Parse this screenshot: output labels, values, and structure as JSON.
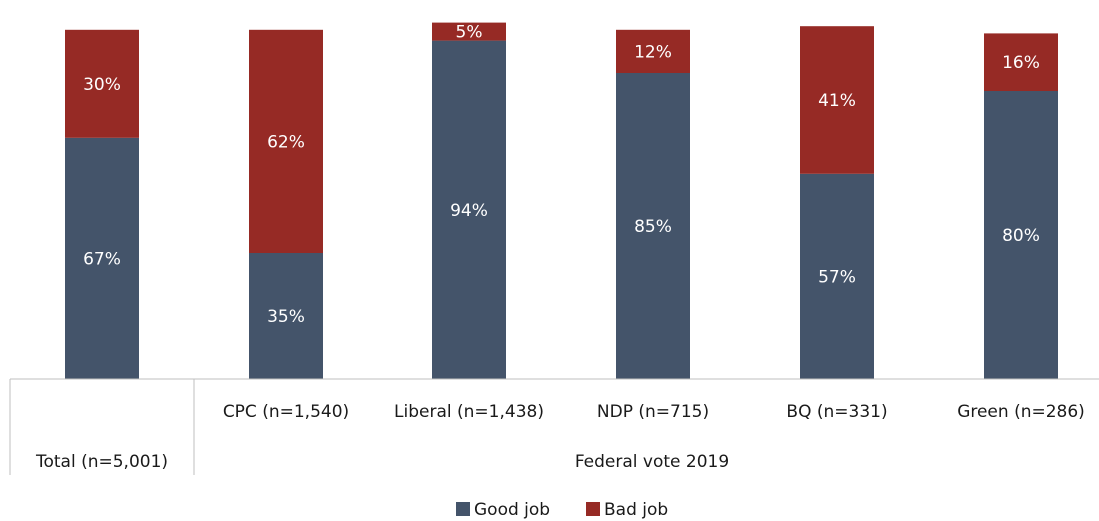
{
  "chart_data": {
    "type": "bar",
    "stacked": true,
    "categories": [
      "Total (n=5,001)",
      "CPC (n=1,540)",
      "Liberal (n=1,438)",
      "NDP (n=715)",
      "BQ (n=331)",
      "Green (n=286)"
    ],
    "group_label": "Federal vote 2019",
    "series": [
      {
        "name": "Good job",
        "color": "#44546a",
        "values": [
          67,
          35,
          94,
          85,
          57,
          80
        ]
      },
      {
        "name": "Bad job",
        "color": "#962a25",
        "values": [
          30,
          62,
          5,
          12,
          41,
          16
        ]
      }
    ],
    "data_labels": [
      [
        "67%",
        "35%",
        "94%",
        "85%",
        "57%",
        "80%"
      ],
      [
        "30%",
        "62%",
        "5%",
        "12%",
        "41%",
        "16%"
      ]
    ],
    "ylim": [
      0,
      100
    ],
    "grid": false,
    "legend_position": "bottom"
  }
}
